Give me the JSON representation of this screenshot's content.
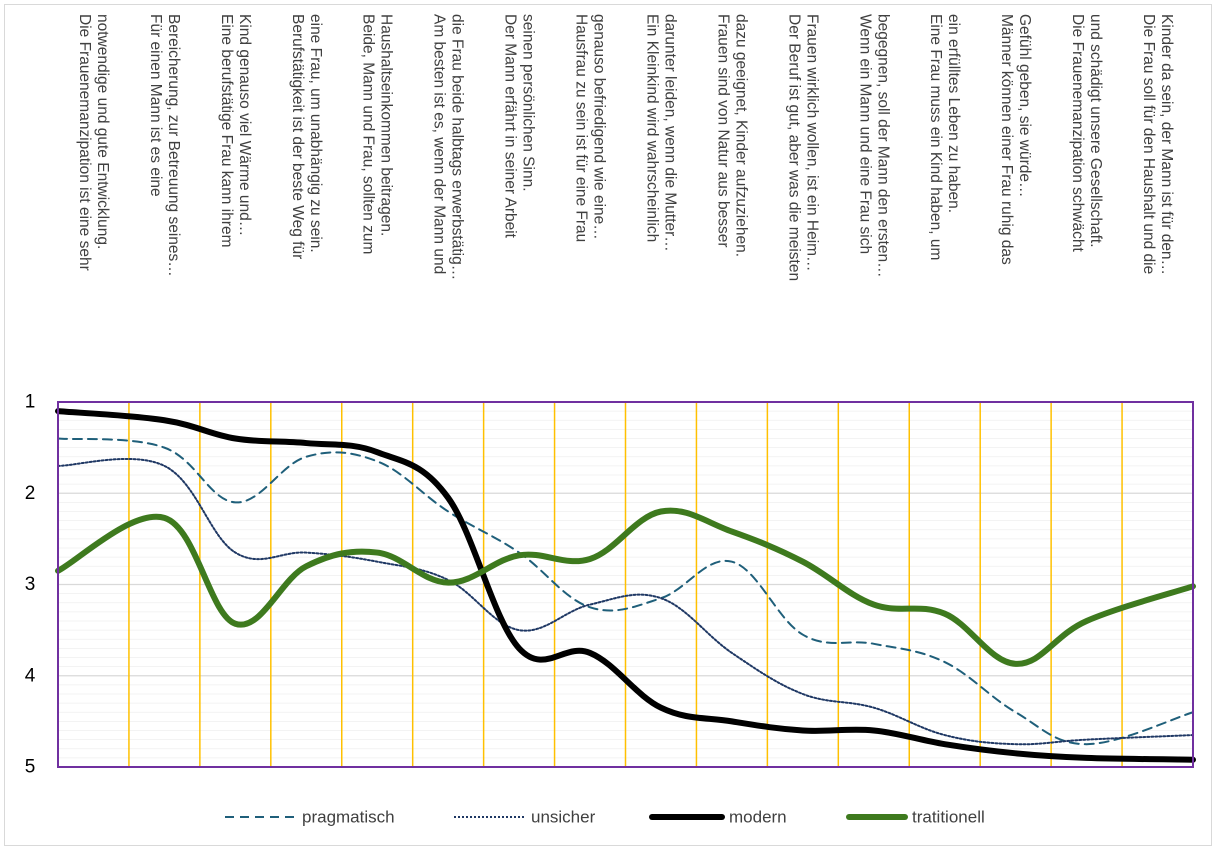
{
  "chart_data": {
    "type": "line",
    "title": "",
    "xlabel": "",
    "ylabel": "",
    "ylim": [
      1,
      5
    ],
    "y_reversed": true,
    "y_ticks": [
      1,
      2,
      3,
      4,
      5
    ],
    "grid": true,
    "legend_position": "bottom",
    "categories": [
      [
        "Die Frauenemanzipation ist eine sehr",
        "notwendige und gute Entwicklung."
      ],
      [
        "Für einen Mann ist es eine",
        "Bereicherung, zur Betreuung seines…"
      ],
      [
        "Eine berufstätige Frau kann ihrem",
        "Kind genauso viel Wärme und…"
      ],
      [
        "Berufstätigkeit ist der beste Weg für",
        "eine Frau, um unabhängig zu sein."
      ],
      [
        "Beide, Mann und Frau, sollten zum",
        "Haushaltseinkommen beitragen."
      ],
      [
        "Am besten ist es, wenn der Mann und",
        "die Frau beide halbtags erwerbstätig…"
      ],
      [
        "Der Mann erfährt in seiner Arbeit",
        "seinen persönlichen Sinn."
      ],
      [
        "Hausfrau zu sein ist für eine Frau",
        "genauso befriedigend wie eine…"
      ],
      [
        "Ein Kleinkind wird wahrscheinlich",
        "darunter leiden, wenn die Mutter…"
      ],
      [
        "Frauen sind von Natur aus besser",
        "dazu geeignet, Kinder aufzuziehen."
      ],
      [
        "Der Beruf ist gut, aber was die meisten",
        "Frauen wirklich wollen, ist ein Heim…"
      ],
      [
        "Wenn ein Mann und eine Frau sich",
        "begegnen, soll der Mann den ersten…"
      ],
      [
        "Eine Frau muss ein Kind haben, um",
        "ein erfülltes Leben zu haben."
      ],
      [
        "Männer können einer Frau ruhig das",
        "Gefühl geben, sie würde…"
      ],
      [
        "Die Frauenemanzipation schwächt",
        "und schädigt unsere Gesellschaft."
      ],
      [
        "Die Frau soll für den Haushalt und die",
        "Kinder da sein, der Mann ist für den…"
      ]
    ],
    "series": [
      {
        "name": "pragmatisch",
        "color": "#1f5f7a",
        "dash": "dashed",
        "values": [
          1.4,
          1.5,
          2.1,
          1.6,
          1.65,
          2.2,
          2.65,
          3.25,
          3.15,
          2.75,
          3.55,
          3.65,
          3.85,
          4.4,
          4.75,
          4.4
        ]
      },
      {
        "name": "unsicher",
        "color": "#1f3864",
        "dash": "dotted",
        "values": [
          1.7,
          1.7,
          2.65,
          2.65,
          2.75,
          2.95,
          3.5,
          3.22,
          3.15,
          3.75,
          4.2,
          4.35,
          4.65,
          4.75,
          4.7,
          4.65
        ]
      },
      {
        "name": "modern",
        "color": "#000000",
        "dash": "solid",
        "values": [
          1.1,
          1.2,
          1.4,
          1.45,
          1.55,
          2.05,
          3.7,
          3.75,
          4.35,
          4.5,
          4.6,
          4.6,
          4.75,
          4.85,
          4.9,
          4.92
        ]
      },
      {
        "name": "tratitionell",
        "color": "#3e7a1e",
        "dash": "solid",
        "values": [
          2.85,
          2.27,
          3.43,
          2.8,
          2.65,
          2.98,
          2.68,
          2.72,
          2.2,
          2.42,
          2.75,
          3.22,
          3.32,
          3.87,
          3.4,
          3.02
        ]
      }
    ]
  }
}
